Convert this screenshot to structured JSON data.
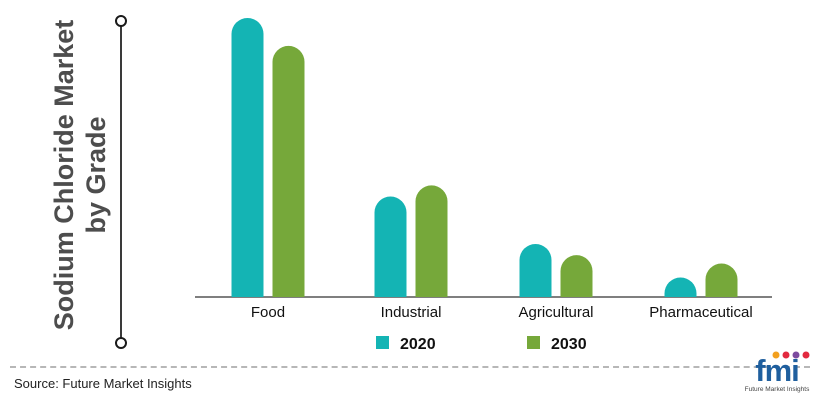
{
  "chart_data": {
    "type": "bar",
    "title": "Sodium Chloride Market by Grade",
    "title_lines": [
      "Sodium Chloride Market",
      "by Grade"
    ],
    "categories": [
      "Food",
      "Industrial",
      "Agricultural",
      "Pharmaceutical"
    ],
    "series": [
      {
        "name": "2020",
        "color": "#14b4b4",
        "values": [
          100,
          36,
          19,
          7
        ]
      },
      {
        "name": "2030",
        "color": "#76a83a",
        "values": [
          90,
          40,
          15,
          12
        ]
      }
    ],
    "ylim": [
      0,
      100
    ],
    "xlabel": "",
    "ylabel": "",
    "grid": false,
    "legend_position": "bottom"
  },
  "footer": {
    "source": "Source: Future Market Insights"
  },
  "logo": {
    "text": "fmi",
    "subtitle": "Future Market Insights",
    "dot_colors": [
      "#f2a01f",
      "#e2293f",
      "#7c4b9f",
      "#e2293f"
    ]
  }
}
